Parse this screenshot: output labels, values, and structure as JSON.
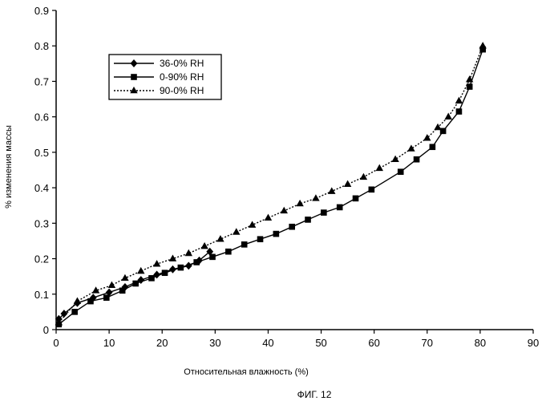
{
  "figure_caption": "ФИГ. 12",
  "chart_data": {
    "type": "line",
    "title": "",
    "xlabel": "Относительная влажность (%)",
    "ylabel": "% изменения массы",
    "xlim": [
      0,
      90
    ],
    "ylim": [
      0,
      0.9
    ],
    "xticks": [
      0,
      10,
      20,
      30,
      40,
      50,
      60,
      70,
      80,
      90
    ],
    "yticks": [
      0,
      0.1,
      0.2,
      0.3,
      0.4,
      0.5,
      0.6,
      0.7,
      0.8,
      0.9
    ],
    "xtick_labels": [
      "0",
      "10",
      "20",
      "30",
      "40",
      "50",
      "60",
      "70",
      "80",
      "90"
    ],
    "ytick_labels": [
      "0",
      "0.1",
      "0.2",
      "0.3",
      "0.4",
      "0.5",
      "0.6",
      "0.7",
      "0.8",
      "0.9"
    ],
    "grid": false,
    "legend_position": "top-left",
    "series": [
      {
        "name": "36-0% RH",
        "marker": "diamond",
        "line": "solid",
        "color": "#000000",
        "x": [
          0.5,
          1.5,
          4,
          7,
          10,
          13,
          16,
          19,
          22,
          25,
          27,
          29
        ],
        "y": [
          0.03,
          0.045,
          0.075,
          0.09,
          0.105,
          0.12,
          0.14,
          0.155,
          0.17,
          0.18,
          0.195,
          0.22
        ]
      },
      {
        "name": "0-90% RH",
        "marker": "square",
        "line": "solid",
        "color": "#000000",
        "x": [
          0.5,
          3.5,
          6.5,
          9.5,
          12.5,
          15,
          18,
          20.5,
          23.5,
          26.5,
          29.5,
          32.5,
          35.5,
          38.5,
          41.5,
          44.5,
          47.5,
          50.5,
          53.5,
          56.5,
          59.5,
          65,
          68,
          71,
          73,
          76,
          78,
          80.5
        ],
        "y": [
          0.015,
          0.05,
          0.08,
          0.09,
          0.11,
          0.13,
          0.145,
          0.16,
          0.175,
          0.19,
          0.205,
          0.22,
          0.24,
          0.255,
          0.27,
          0.29,
          0.31,
          0.33,
          0.345,
          0.37,
          0.395,
          0.445,
          0.48,
          0.515,
          0.56,
          0.615,
          0.685,
          0.79
        ]
      },
      {
        "name": "90-0% RH",
        "marker": "triangle",
        "line": "dotted",
        "color": "#000000",
        "x": [
          0.5,
          4,
          7.5,
          10.5,
          13,
          16,
          19,
          22,
          25,
          28,
          31,
          34,
          37,
          40,
          43,
          46,
          49,
          52,
          55,
          58,
          61,
          64,
          67,
          70,
          72,
          74,
          76,
          78,
          80.5
        ],
        "y": [
          0.02,
          0.08,
          0.11,
          0.125,
          0.145,
          0.165,
          0.185,
          0.2,
          0.215,
          0.235,
          0.255,
          0.275,
          0.295,
          0.315,
          0.335,
          0.355,
          0.37,
          0.39,
          0.41,
          0.43,
          0.455,
          0.48,
          0.51,
          0.54,
          0.57,
          0.6,
          0.645,
          0.705,
          0.8
        ]
      }
    ]
  }
}
